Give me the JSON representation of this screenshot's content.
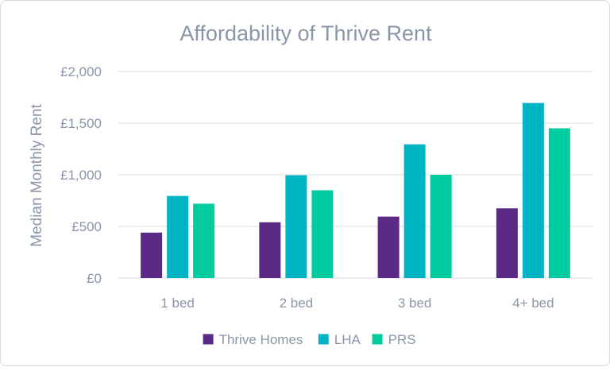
{
  "chart_data": {
    "type": "bar",
    "title": "Affordability of Thrive Rent",
    "xlabel": "",
    "ylabel": "Median Monthly Rent",
    "categories": [
      "1 bed",
      "2 bed",
      "3 bed",
      "4+ bed"
    ],
    "series": [
      {
        "name": "Thrive Homes",
        "values": [
          440,
          540,
          595,
          675
        ],
        "color": "#5b2a86"
      },
      {
        "name": "LHA",
        "values": [
          795,
          995,
          1295,
          1695
        ],
        "color": "#00b5c3"
      },
      {
        "name": "PRS",
        "values": [
          720,
          850,
          1000,
          1450
        ],
        "color": "#00cc9f"
      }
    ],
    "ylim": [
      0,
      2000
    ],
    "yticks": [
      0,
      500,
      1000,
      1500,
      2000
    ],
    "ytick_labels": [
      "£0",
      "£500",
      "£1,000",
      "£1,500",
      "£2,000"
    ],
    "grid": true,
    "legend_position": "bottom"
  },
  "colors": {
    "text": "#8a96a8",
    "grid": "#d9d9d9"
  }
}
